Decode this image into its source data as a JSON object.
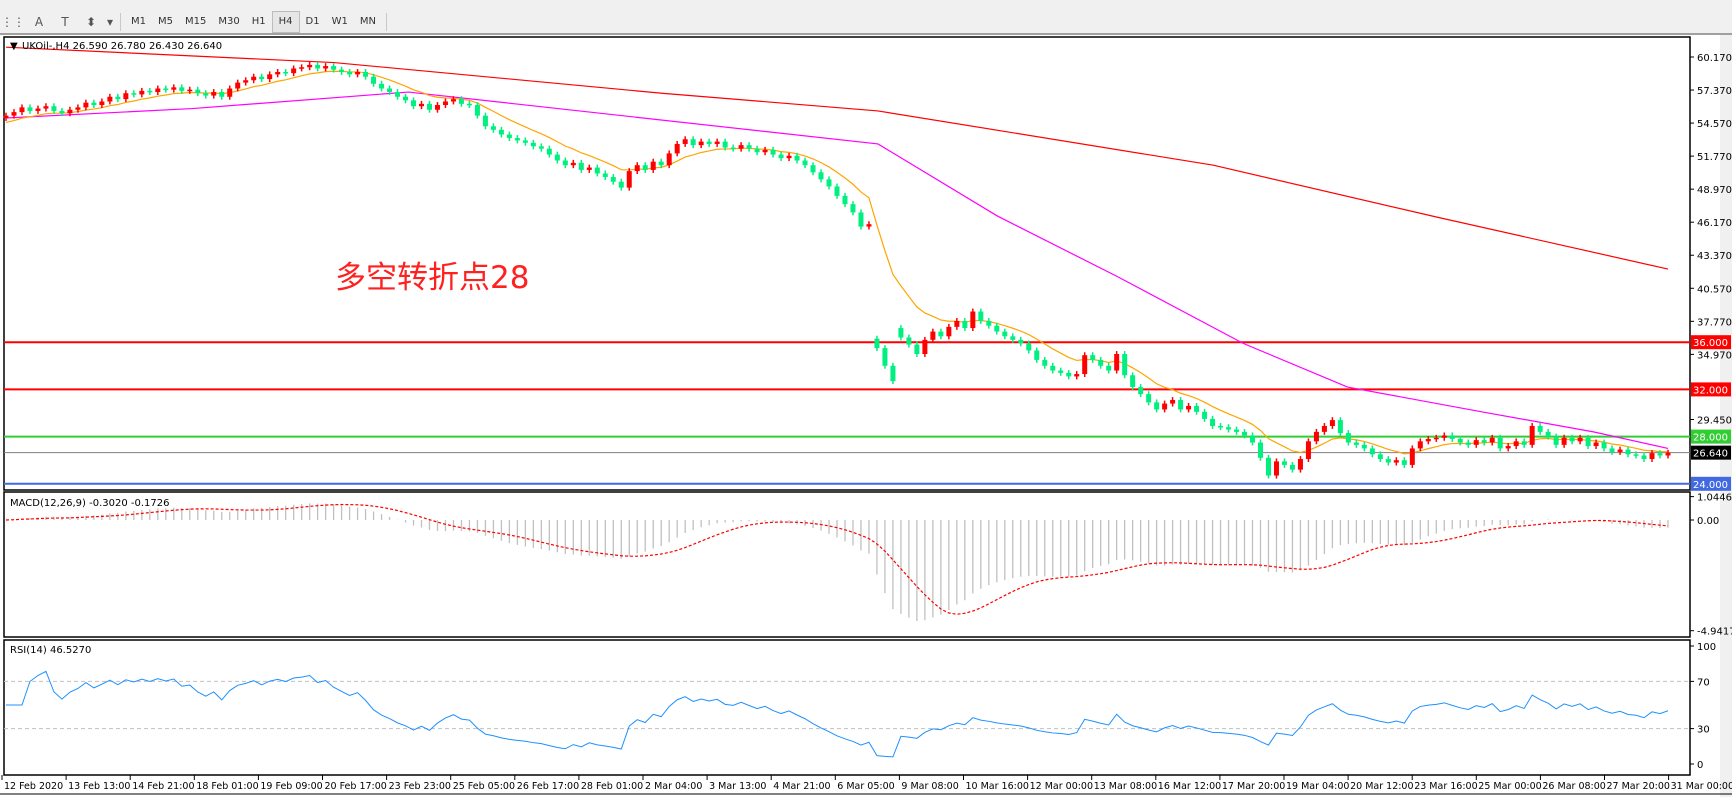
{
  "toolbar": {
    "icons": [
      "grid-f-icon",
      "text-a-icon",
      "text-label-icon",
      "arrows-icon",
      "dropdown-icon"
    ],
    "timeframes": [
      "M1",
      "M5",
      "M15",
      "M30",
      "H1",
      "H4",
      "D1",
      "W1",
      "MN"
    ],
    "active_timeframe": "H4"
  },
  "chart_title": "UKOil-,H4  26.590 26.780 26.430 26.640",
  "annotation": "多空转折点28",
  "colors": {
    "up": "#ff0000",
    "down": "#00f080",
    "ma_fast": "#ffa500",
    "ma_mid": "#ff00ff",
    "ma_slow": "#ff0000",
    "rsi": "#1e90ff",
    "macd_hist": "#c0c0c0",
    "macd_signal": "#ff0000"
  },
  "chart_data": {
    "type": "candlestick",
    "symbol": "UKOil-",
    "timeframe": "H4",
    "ylim": [
      23.6,
      61.8
    ],
    "y_ticks": [
      "60.170",
      "57.370",
      "54.570",
      "51.770",
      "48.970",
      "46.170",
      "43.370",
      "40.570",
      "37.770",
      "34.970",
      "29.450"
    ],
    "x_ticks": [
      "12 Feb 2020",
      "13 Feb 13:00",
      "14 Feb 21:00",
      "18 Feb 01:00",
      "19 Feb 09:00",
      "20 Feb 17:00",
      "23 Feb 23:00",
      "25 Feb 05:00",
      "26 Feb 17:00",
      "28 Feb 01:00",
      "2 Mar 04:00",
      "3 Mar 13:00",
      "4 Mar 21:00",
      "6 Mar 05:00",
      "9 Mar 08:00",
      "10 Mar 16:00",
      "12 Mar 00:00",
      "13 Mar 08:00",
      "16 Mar 12:00",
      "17 Mar 20:00",
      "19 Mar 04:00",
      "20 Mar 12:00",
      "23 Mar 16:00",
      "25 Mar 00:00",
      "26 Mar 08:00",
      "27 Mar 20:00",
      "31 Mar 00:00"
    ],
    "close": [
      55.2,
      55.5,
      55.9,
      55.6,
      55.8,
      56.0,
      55.6,
      55.4,
      55.7,
      55.9,
      56.3,
      56.1,
      56.4,
      56.8,
      56.6,
      57.1,
      57.0,
      57.3,
      57.2,
      57.5,
      57.4,
      57.6,
      57.3,
      57.4,
      57.1,
      56.9,
      57.2,
      56.8,
      57.5,
      58.0,
      58.2,
      58.5,
      58.3,
      58.7,
      58.9,
      58.8,
      59.2,
      59.3,
      59.5,
      59.2,
      59.4,
      59.1,
      58.9,
      58.7,
      58.9,
      58.5,
      57.9,
      57.5,
      57.2,
      56.8,
      56.5,
      56.0,
      56.2,
      55.7,
      56.1,
      56.4,
      56.6,
      56.2,
      56.1,
      55.2,
      54.3,
      54.0,
      53.6,
      53.3,
      53.1,
      52.9,
      52.6,
      52.4,
      51.9,
      51.4,
      51.0,
      51.2,
      50.6,
      50.8,
      50.3,
      50.0,
      49.6,
      49.1,
      50.5,
      51.0,
      50.6,
      51.3,
      51.0,
      52.0,
      52.8,
      53.2,
      52.7,
      53.0,
      52.8,
      53.0,
      52.5,
      52.4,
      52.7,
      52.4,
      52.1,
      52.3,
      51.9,
      51.6,
      51.8,
      51.4,
      51.0,
      50.4,
      49.8,
      49.2,
      48.4,
      47.7,
      47.0,
      45.8,
      46.0,
      35.5,
      34.0,
      32.7,
      36.4,
      35.8,
      35.0,
      36.2,
      36.9,
      36.5,
      37.3,
      37.8,
      37.2,
      38.6,
      37.8,
      37.4,
      36.9,
      36.5,
      36.2,
      35.9,
      35.3,
      34.5,
      34.0,
      33.6,
      33.4,
      33.1,
      33.3,
      34.9,
      34.5,
      34.0,
      33.6,
      35.0,
      33.2,
      32.2,
      31.6,
      30.9,
      30.3,
      30.8,
      31.1,
      30.3,
      30.6,
      30.1,
      29.5,
      28.9,
      28.8,
      28.6,
      28.4,
      28.1,
      27.5,
      26.2,
      24.7,
      25.9,
      25.6,
      25.2,
      26.1,
      27.6,
      28.4,
      28.9,
      29.4,
      28.3,
      27.5,
      27.3,
      27.0,
      26.5,
      26.1,
      25.8,
      26.0,
      25.6,
      27.0,
      27.6,
      27.8,
      27.9,
      28.1,
      27.8,
      27.5,
      27.3,
      27.7,
      27.5,
      27.9,
      27.0,
      27.2,
      27.6,
      27.3,
      28.9,
      28.4,
      28.0,
      27.3,
      27.9,
      27.6,
      27.9,
      27.2,
      27.5,
      27.0,
      26.7,
      26.9,
      26.5,
      26.4,
      26.1,
      26.6,
      26.4,
      26.64
    ],
    "ma_slow_points": [
      [
        0,
        61.0
      ],
      [
        44,
        59.7
      ],
      [
        88,
        57.1
      ],
      [
        117,
        55.6
      ],
      [
        162,
        51.0
      ],
      [
        192,
        46.6
      ],
      [
        223,
        42.2
      ]
    ],
    "ma_mid_points": [
      [
        0,
        55.0
      ],
      [
        25,
        55.8
      ],
      [
        54,
        57.2
      ],
      [
        117,
        52.8
      ],
      [
        133,
        46.7
      ],
      [
        149,
        41.6
      ],
      [
        166,
        35.9
      ],
      [
        180,
        32.2
      ],
      [
        198,
        30.1
      ],
      [
        213,
        28.4
      ],
      [
        223,
        27.0
      ]
    ],
    "hlines": [
      {
        "value": 36.0,
        "label": "36.000",
        "color": "#ff0000"
      },
      {
        "value": 32.0,
        "label": "32.000",
        "color": "#ff0000"
      },
      {
        "value": 28.0,
        "label": "28.000",
        "color": "#32cd32"
      },
      {
        "value": 26.64,
        "label": "26.640",
        "color": "#808080",
        "label_bg": "#000000"
      },
      {
        "value": 24.0,
        "label": "24.000",
        "color": "#4169e1"
      }
    ],
    "macd": {
      "label": "MACD(12,26,9) -0.3020 -0.1726",
      "ylim": [
        -4.9417,
        1.0446
      ],
      "ticks": [
        "1.0446",
        "0.00",
        "-4.9417"
      ]
    },
    "rsi": {
      "label": "RSI(14) 46.5270",
      "ylim": [
        0,
        100
      ],
      "levels": [
        70,
        30
      ],
      "ticks": [
        "100",
        "70",
        "30",
        "0"
      ]
    }
  }
}
